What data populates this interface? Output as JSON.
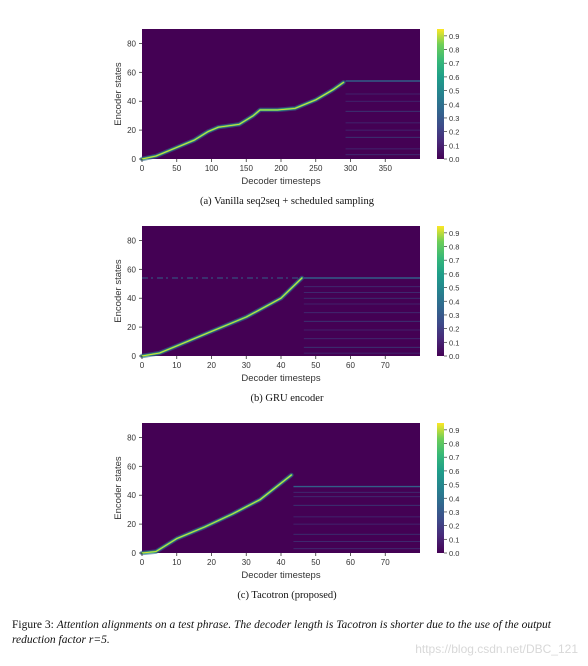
{
  "chart_data": [
    {
      "type": "heatmap",
      "subcaption": "(a) Vanilla seq2seq + scheduled sampling",
      "xlabel": "Decoder timesteps",
      "ylabel": "Encoder states",
      "x_ticks": [
        0,
        50,
        100,
        150,
        200,
        250,
        300,
        350
      ],
      "y_ticks": [
        0,
        20,
        40,
        60,
        80
      ],
      "xlim": [
        0,
        400
      ],
      "ylim": [
        0,
        90
      ],
      "colorbar": {
        "min": 0.0,
        "max": 0.95,
        "ticks": [
          "0.0",
          "0.1",
          "0.2",
          "0.3",
          "0.4",
          "0.5",
          "0.6",
          "0.7",
          "0.8",
          "0.9"
        ]
      },
      "alignment_path": [
        [
          0,
          0
        ],
        [
          20,
          2
        ],
        [
          50,
          8
        ],
        [
          75,
          13
        ],
        [
          95,
          19
        ],
        [
          110,
          22
        ],
        [
          140,
          24
        ],
        [
          160,
          30
        ],
        [
          170,
          34
        ],
        [
          195,
          34
        ],
        [
          220,
          35
        ],
        [
          250,
          41
        ],
        [
          275,
          48
        ],
        [
          290,
          53
        ]
      ],
      "alignment_end_step": 290,
      "diffuse_rows": [
        54,
        45,
        40,
        33,
        25,
        20,
        15,
        7,
        3
      ],
      "colors": {
        "background": "#440154",
        "line_high": "#fde725",
        "line_mid": "#35b779",
        "line_low": "#31688e"
      }
    },
    {
      "type": "heatmap",
      "subcaption": "(b) GRU encoder",
      "xlabel": "Decoder timesteps",
      "ylabel": "Encoder states",
      "x_ticks": [
        0,
        10,
        20,
        30,
        40,
        50,
        60,
        70
      ],
      "y_ticks": [
        0,
        20,
        40,
        60,
        80
      ],
      "xlim": [
        0,
        80
      ],
      "ylim": [
        0,
        90
      ],
      "colorbar": {
        "min": 0.0,
        "max": 0.95,
        "ticks": [
          "0.0",
          "0.1",
          "0.2",
          "0.3",
          "0.4",
          "0.5",
          "0.6",
          "0.7",
          "0.8",
          "0.9"
        ]
      },
      "alignment_path": [
        [
          0,
          0
        ],
        [
          5,
          2
        ],
        [
          10,
          7
        ],
        [
          20,
          17
        ],
        [
          30,
          27
        ],
        [
          40,
          40
        ],
        [
          46,
          54
        ]
      ],
      "alignment_end_step": 46,
      "diffuse_rows": [
        54,
        48,
        44,
        40,
        36,
        30,
        24,
        18,
        12,
        6,
        2
      ],
      "top_band_row": 54,
      "colors": {
        "background": "#440154",
        "line_high": "#fde725",
        "line_mid": "#35b779",
        "line_low": "#31688e"
      }
    },
    {
      "type": "heatmap",
      "subcaption": "(c) Tacotron (proposed)",
      "xlabel": "Decoder timesteps",
      "ylabel": "Encoder states",
      "x_ticks": [
        0,
        10,
        20,
        30,
        40,
        50,
        60,
        70
      ],
      "y_ticks": [
        0,
        20,
        40,
        60,
        80
      ],
      "xlim": [
        0,
        80
      ],
      "ylim": [
        0,
        90
      ],
      "colorbar": {
        "min": 0.0,
        "max": 0.95,
        "ticks": [
          "0.0",
          "0.1",
          "0.2",
          "0.3",
          "0.4",
          "0.5",
          "0.6",
          "0.7",
          "0.8",
          "0.9"
        ]
      },
      "alignment_path": [
        [
          0,
          0
        ],
        [
          4,
          1
        ],
        [
          10,
          10
        ],
        [
          18,
          18
        ],
        [
          26,
          27
        ],
        [
          34,
          37
        ],
        [
          43,
          54
        ]
      ],
      "alignment_end_step": 43,
      "diffuse_rows": [
        46,
        42,
        39,
        33,
        25,
        20,
        13,
        8,
        3
      ],
      "colors": {
        "background": "#440154",
        "line_high": "#fde725",
        "line_mid": "#35b779",
        "line_low": "#31688e"
      }
    }
  ],
  "figure_caption": {
    "label": "Figure 3:",
    "text": "Attention alignments on a test phrase. The decoder length is Tacotron is shorter due to the use of the output reduction factor r=5."
  },
  "watermark": "https://blog.csdn.net/DBC_121"
}
